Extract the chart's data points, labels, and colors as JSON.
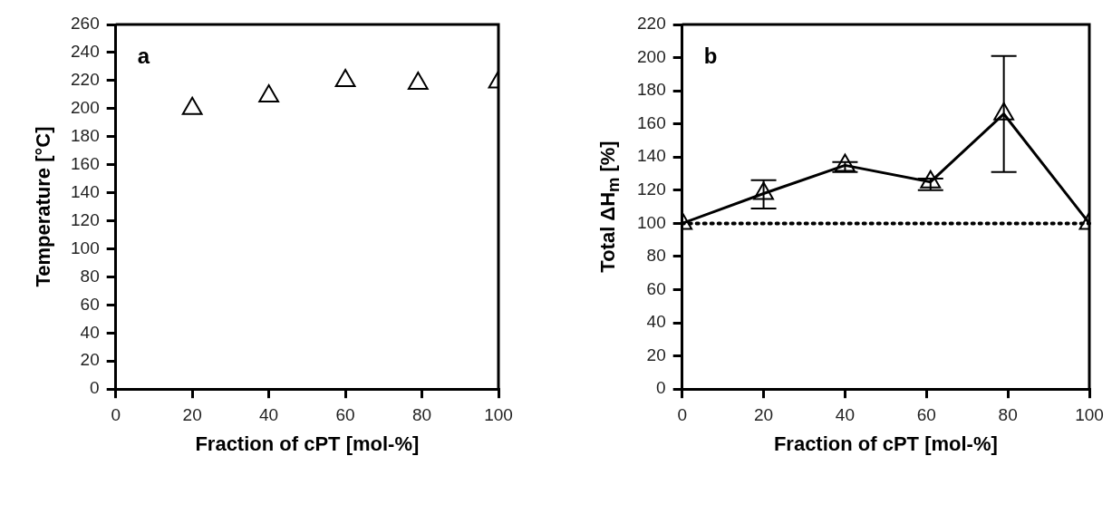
{
  "chart_data": [
    {
      "type": "scatter",
      "xlabel": "Fraction of cPT [mol-%]",
      "ylabel": "Temperature [°C]",
      "annotations": [
        "a"
      ],
      "x": [
        20,
        40,
        60,
        79,
        100
      ],
      "values": [
        200,
        209,
        220,
        218,
        219
      ],
      "color": "#000000",
      "marker": "triangle",
      "xlim": [
        0,
        100
      ],
      "xticks": [
        0,
        20,
        40,
        60,
        80,
        100
      ],
      "ylim": [
        0,
        260
      ],
      "yticks": [
        0,
        20,
        40,
        60,
        80,
        100,
        120,
        140,
        160,
        180,
        200,
        220,
        240,
        260
      ],
      "grid": false,
      "legend": false
    },
    {
      "type": "line",
      "xlabel": "Fraction of cPT [mol-%]",
      "ylabel": "Total ΔH$_{m}$ [%]",
      "annotations": [
        "b"
      ],
      "x": [
        0,
        20,
        40,
        61,
        79,
        100
      ],
      "values": [
        100,
        118,
        135,
        125,
        166,
        100
      ],
      "errors": [
        null,
        [
          109,
          126
        ],
        [
          131,
          137
        ],
        [
          120,
          127
        ],
        [
          131,
          201
        ],
        null
      ],
      "color": "#000000",
      "marker": "triangle",
      "line_style": "solid",
      "ref_lines": [
        {
          "axis": "y",
          "value": 100,
          "line_style": "dotted",
          "color": "#000000"
        }
      ],
      "xlim": [
        0,
        100
      ],
      "xticks": [
        0,
        20,
        40,
        60,
        80,
        100
      ],
      "ylim": [
        0,
        220
      ],
      "yticks": [
        0,
        20,
        40,
        60,
        80,
        100,
        120,
        140,
        160,
        180,
        200,
        220
      ],
      "grid": false,
      "legend": false
    }
  ]
}
